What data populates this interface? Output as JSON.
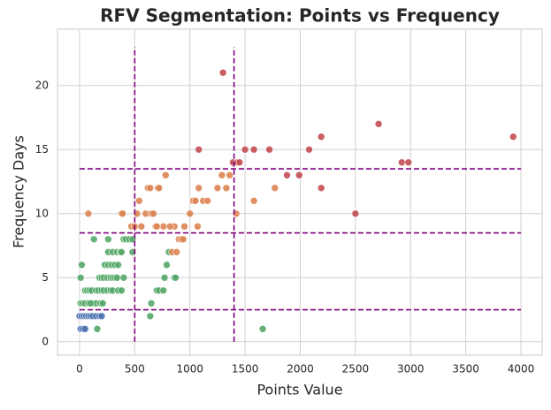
{
  "chart_data": {
    "type": "scatter",
    "title": "RFV Segmentation: Points vs Frequency",
    "x_label": "Points Value",
    "y_label": "Frequency Days",
    "xlim": [
      -200,
      4192
    ],
    "ylim": [
      -1.05,
      24.4
    ],
    "xticks": [
      0,
      500,
      1000,
      1500,
      2000,
      2500,
      3000,
      3500,
      4000
    ],
    "yticks": [
      0,
      5,
      10,
      15,
      20
    ],
    "grid": true,
    "series": [
      {
        "color": "#4c72b0",
        "x": [
          10,
          30,
          50,
          0,
          20,
          40,
          60,
          80,
          100,
          120,
          150,
          180,
          200
        ],
        "values": [
          1,
          1,
          1,
          2,
          2,
          2,
          2,
          2,
          2,
          2,
          2,
          2,
          2
        ]
      },
      {
        "color": "#55a868",
        "x": [
          10,
          30,
          50,
          80,
          120,
          150,
          10,
          20,
          50,
          70,
          90,
          110,
          130,
          100,
          150,
          170,
          200,
          220,
          250,
          280,
          300,
          180,
          200,
          220,
          250,
          280,
          300,
          320,
          340,
          230,
          260,
          290,
          320,
          350,
          260,
          300,
          340,
          370,
          260,
          380,
          400,
          420,
          450,
          350,
          380,
          400,
          160,
          190,
          210,
          480,
          480,
          640,
          650,
          700,
          720,
          760,
          770,
          790,
          810,
          860,
          870,
          1660
        ],
        "values": [
          3,
          3,
          3,
          3,
          3,
          3,
          5,
          6,
          4,
          4,
          4,
          4,
          8,
          3,
          4,
          4,
          4,
          4,
          4,
          4,
          4,
          5,
          5,
          5,
          5,
          5,
          5,
          5,
          5,
          6,
          6,
          6,
          6,
          6,
          7,
          7,
          7,
          7,
          8,
          7,
          8,
          8,
          8,
          4,
          4,
          5,
          1,
          3,
          3,
          7,
          8,
          2,
          3,
          4,
          4,
          4,
          5,
          6,
          7,
          5,
          5,
          1
        ]
      },
      {
        "color": "#dd8452",
        "x": [
          80,
          380,
          390,
          470,
          500,
          520,
          540,
          560,
          600,
          620,
          640,
          650,
          670,
          690,
          710,
          720,
          760,
          780,
          840,
          880,
          900,
          920,
          940,
          860,
          950,
          1000,
          1030,
          1050,
          1070,
          1080,
          1120,
          1160,
          1250,
          1290,
          1330,
          1360,
          1420,
          1580,
          1770,
          820,
          700
        ],
        "values": [
          10,
          10,
          10,
          9,
          9,
          10,
          11,
          9,
          10,
          12,
          12,
          10,
          10,
          9,
          12,
          12,
          9,
          13,
          7,
          7,
          8,
          8,
          8,
          9,
          9,
          10,
          11,
          11,
          9,
          12,
          11,
          11,
          12,
          13,
          12,
          13,
          10,
          11,
          12,
          9,
          9
        ]
      },
      {
        "color": "#c44e52",
        "x": [
          1300,
          1080,
          1390,
          1430,
          1450,
          1500,
          1580,
          1720,
          1880,
          1990,
          2080,
          2190,
          2190,
          2500,
          2710,
          2920,
          2980,
          3930
        ],
        "values": [
          21,
          15,
          14,
          14,
          14,
          15,
          15,
          15,
          13,
          13,
          15,
          16,
          12,
          10,
          17,
          14,
          14,
          16
        ]
      }
    ],
    "ref_line_color": "#800080",
    "hlines": [
      {
        "y": 2.5,
        "xmin": 0,
        "xmax": 4000
      },
      {
        "y": 8.5,
        "xmin": 0,
        "xmax": 4000
      },
      {
        "y": 13.5,
        "xmin": 0,
        "xmax": 4000
      }
    ],
    "vlines": [
      {
        "x": 500,
        "ymin": 0,
        "ymax": 23
      },
      {
        "x": 1400,
        "ymin": 0,
        "ymax": 23
      }
    ]
  }
}
